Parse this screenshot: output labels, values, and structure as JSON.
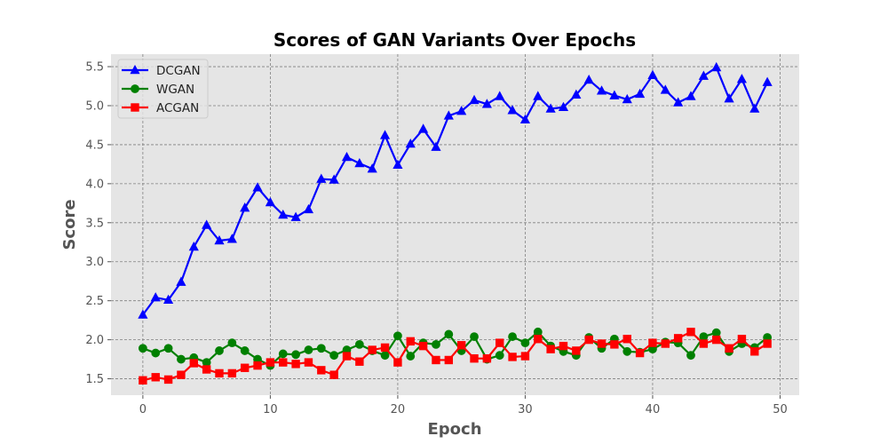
{
  "chart_data": {
    "type": "line",
    "title": "Scores of GAN Variants Over Epochs",
    "xlabel": "Epoch",
    "ylabel": "Score",
    "xlim": [
      -2.5,
      51.5
    ],
    "ylim": [
      1.29,
      5.66
    ],
    "xticks": [
      0,
      10,
      20,
      30,
      40,
      50
    ],
    "yticks": [
      1.5,
      2.0,
      2.5,
      3.0,
      3.5,
      4.0,
      4.5,
      5.0,
      5.5
    ],
    "grid": true,
    "legend_position": "top-left",
    "x": [
      0,
      1,
      2,
      3,
      4,
      5,
      6,
      7,
      8,
      9,
      10,
      11,
      12,
      13,
      14,
      15,
      16,
      17,
      18,
      19,
      20,
      21,
      22,
      23,
      24,
      25,
      26,
      27,
      28,
      29,
      30,
      31,
      32,
      33,
      34,
      35,
      36,
      37,
      38,
      39,
      40,
      41,
      42,
      43,
      44,
      45,
      46,
      47,
      48,
      49
    ],
    "series": [
      {
        "name": "DCGAN",
        "color": "#0000ff",
        "marker": "triangle",
        "values": [
          2.32,
          2.54,
          2.51,
          2.74,
          3.19,
          3.47,
          3.27,
          3.29,
          3.69,
          3.95,
          3.76,
          3.6,
          3.57,
          3.67,
          4.06,
          4.05,
          4.34,
          4.26,
          4.19,
          4.62,
          4.24,
          4.51,
          4.7,
          4.47,
          4.87,
          4.93,
          5.07,
          5.02,
          5.12,
          4.94,
          4.82,
          5.12,
          4.96,
          4.98,
          5.14,
          5.33,
          5.19,
          5.13,
          5.08,
          5.15,
          5.39,
          5.2,
          5.04,
          5.12,
          5.38,
          5.49,
          5.09,
          5.34,
          4.96,
          5.3
        ]
      },
      {
        "name": "WGAN",
        "color": "#008000",
        "marker": "circle",
        "values": [
          1.89,
          1.83,
          1.89,
          1.75,
          1.77,
          1.71,
          1.86,
          1.96,
          1.86,
          1.75,
          1.67,
          1.82,
          1.81,
          1.87,
          1.89,
          1.8,
          1.87,
          1.94,
          1.86,
          1.8,
          2.05,
          1.79,
          1.96,
          1.94,
          2.07,
          1.86,
          2.04,
          1.75,
          1.8,
          2.04,
          1.96,
          2.1,
          1.92,
          1.85,
          1.8,
          2.03,
          1.89,
          2.01,
          1.85,
          1.84,
          1.88,
          1.97,
          1.96,
          1.8,
          2.04,
          2.09,
          1.85,
          1.95,
          1.9,
          2.03
        ]
      },
      {
        "name": "ACGAN",
        "color": "#ff0000",
        "marker": "square",
        "values": [
          1.48,
          1.52,
          1.49,
          1.55,
          1.7,
          1.62,
          1.57,
          1.57,
          1.64,
          1.67,
          1.71,
          1.71,
          1.69,
          1.71,
          1.61,
          1.55,
          1.79,
          1.72,
          1.87,
          1.9,
          1.71,
          1.98,
          1.92,
          1.74,
          1.74,
          1.93,
          1.76,
          1.76,
          1.96,
          1.78,
          1.79,
          2.01,
          1.88,
          1.92,
          1.86,
          2.0,
          1.95,
          1.94,
          2.01,
          1.83,
          1.96,
          1.95,
          2.02,
          2.1,
          1.95,
          2.0,
          1.89,
          2.01,
          1.85,
          1.95
        ]
      }
    ]
  }
}
